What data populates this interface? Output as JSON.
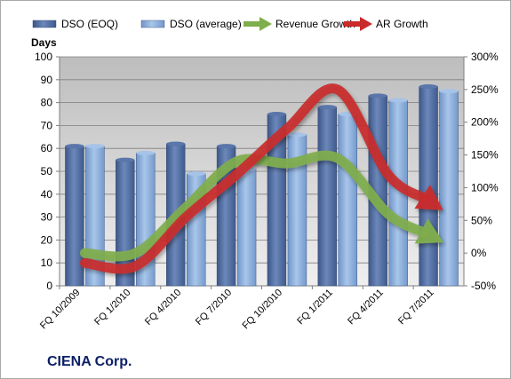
{
  "chart_data": {
    "type": "bar",
    "title": "CIENA Corp.",
    "ylabel_left": "Days",
    "ylabel_right": "",
    "xlabel": "",
    "categories": [
      "FQ 10/2009",
      "FQ 1/2010",
      "FQ 4/2010",
      "FQ 7/2010",
      "FQ 10/2010",
      "FQ 1/2011",
      "FQ 4/2011",
      "FQ 7/2011"
    ],
    "ylim_left": [
      0,
      100
    ],
    "yticks_left": [
      0,
      10,
      20,
      30,
      40,
      50,
      60,
      70,
      80,
      90,
      100
    ],
    "ylim_right": [
      -50,
      300
    ],
    "yticks_right": [
      -50,
      0,
      50,
      100,
      150,
      200,
      250,
      300
    ],
    "ytick_right_suffix": "%",
    "grid": true,
    "legend_position": "top",
    "series": [
      {
        "name": "DSO (EOQ)",
        "kind": "bar",
        "axis": "left",
        "color": "#4f6b9e",
        "values": [
          61,
          55,
          62,
          61,
          75,
          78,
          83,
          87
        ]
      },
      {
        "name": "DSO (average)",
        "kind": "bar",
        "axis": "left",
        "color": "#8eb1dd",
        "values": [
          61,
          58,
          49,
          51,
          66,
          75,
          81,
          85
        ]
      },
      {
        "name": "Revenue Growth",
        "kind": "arrow-line",
        "axis": "right",
        "color": "#7fae4d",
        "values": [
          0,
          0,
          70,
          140,
          137,
          145,
          60,
          20
        ]
      },
      {
        "name": "AR Growth",
        "kind": "arrow-line",
        "axis": "right",
        "color": "#c92a2a",
        "values": [
          -15,
          -20,
          55,
          120,
          190,
          250,
          120,
          70
        ]
      }
    ]
  }
}
